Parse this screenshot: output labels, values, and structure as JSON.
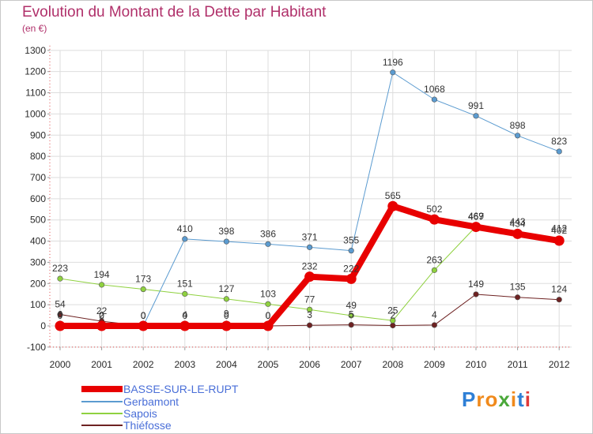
{
  "title": "Evolution du Montant de la Dette par Habitant",
  "unit_label": "(en €)",
  "colors": {
    "title": "#b0306a",
    "axis": "#2a2a2a",
    "grid": "#dddddd",
    "legend_text": "#4a6fd8",
    "value_text": "#333333"
  },
  "logo": {
    "text": "Proxiti",
    "letters": [
      {
        "ch": "P",
        "color": "#2e7fd6"
      },
      {
        "ch": "r",
        "color": "#f08a1c"
      },
      {
        "ch": "o",
        "color": "#f08a1c"
      },
      {
        "ch": "x",
        "color": "#4aa83a"
      },
      {
        "ch": "i",
        "color": "#f08a1c"
      },
      {
        "ch": "t",
        "color": "#2e7fd6"
      },
      {
        "ch": "i",
        "color": "#e03a3a"
      }
    ]
  },
  "chart_data": {
    "type": "line",
    "title": "Evolution du Montant de la Dette par Habitant",
    "subtitle": "(en €)",
    "x": [
      "2000",
      "2001",
      "2002",
      "2003",
      "2004",
      "2005",
      "2006",
      "2007",
      "2008",
      "2009",
      "2010",
      "2011",
      "2012"
    ],
    "yticks": [
      -100,
      0,
      100,
      200,
      300,
      400,
      500,
      600,
      700,
      800,
      900,
      1000,
      1100,
      1200,
      1300
    ],
    "ylim": [
      -100,
      1300
    ],
    "grid": true,
    "legend_position": "bottom-left",
    "series": [
      {
        "name": "Thiéfosse",
        "color": "#6e2222",
        "width": 1,
        "values": [
          54,
          22,
          0,
          4,
          9,
          0,
          3,
          5,
          2,
          4,
          149,
          135,
          124
        ],
        "labels": [
          "54",
          "22",
          "0",
          "4",
          "9",
          "0",
          "3",
          "5",
          "2",
          "4",
          "149",
          "135",
          "124"
        ]
      },
      {
        "name": "Sapois",
        "color": "#8fd13f",
        "width": 1,
        "values": [
          223,
          194,
          173,
          151,
          127,
          103,
          77,
          49,
          25,
          263,
          469,
          443,
          412
        ],
        "labels": [
          "223",
          "194",
          "173",
          "151",
          "127",
          "103",
          "77",
          "49",
          "25",
          "263",
          "469",
          "443",
          "412"
        ]
      },
      {
        "name": "Gerbamont",
        "color": "#5b9bd0",
        "width": 1,
        "values": [
          6,
          2,
          0,
          410,
          398,
          386,
          371,
          355,
          1196,
          1068,
          991,
          898,
          823
        ],
        "labels": [
          "6",
          "2",
          "0",
          "410",
          "398",
          "386",
          "371",
          "355",
          "1196",
          "1068",
          "991",
          "898",
          "823"
        ]
      },
      {
        "name": "BASSE-SUR-LE-RUPT",
        "color": "#e80000",
        "width": 8,
        "values": [
          0,
          0,
          0,
          0,
          0,
          0,
          232,
          222,
          565,
          502,
          467,
          434,
          402
        ],
        "labels": [
          "0",
          "0",
          "0",
          "0",
          "0",
          "0",
          "232",
          "222",
          "565",
          "502",
          "467",
          "434",
          "402"
        ]
      }
    ],
    "legend": [
      "BASSE-SUR-LE-RUPT",
      "Gerbamont",
      "Sapois",
      "Thiéfosse"
    ]
  }
}
